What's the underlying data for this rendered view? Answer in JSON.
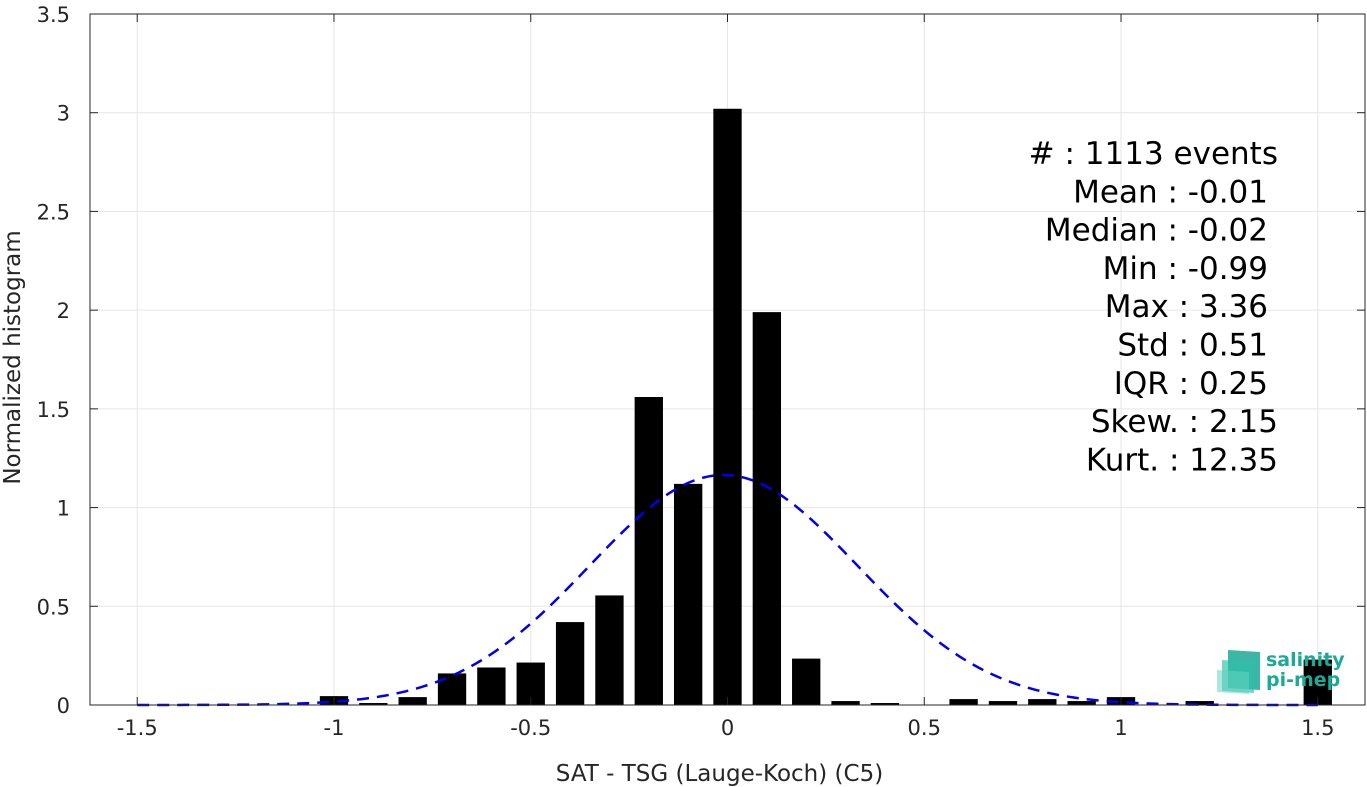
{
  "chart_data": {
    "type": "bar",
    "xlabel": "SAT - TSG (Lauge-Koch) (C5)",
    "ylabel": "Normalized histogram",
    "xlim": [
      -1.62,
      1.62
    ],
    "ylim": [
      0,
      3.5
    ],
    "xticks": [
      -1.5,
      -1,
      -0.5,
      0,
      0.5,
      1,
      1.5
    ],
    "xtick_labels": [
      "-1.5",
      "-1",
      "-0.5",
      "0",
      "0.5",
      "1",
      "1.5"
    ],
    "yticks": [
      0,
      0.5,
      1,
      1.5,
      2,
      2.5,
      3,
      3.5
    ],
    "ytick_labels": [
      "0",
      "0.5",
      "1",
      "1.5",
      "2",
      "2.5",
      "3",
      "3.5"
    ],
    "grid": true,
    "bin_width": 0.1,
    "bars": {
      "x": [
        -1.0,
        -0.9,
        -0.8,
        -0.7,
        -0.6,
        -0.5,
        -0.4,
        -0.3,
        -0.2,
        -0.1,
        0.0,
        0.1,
        0.2,
        0.3,
        0.4,
        0.5,
        0.6,
        0.7,
        0.8,
        0.9,
        1.0,
        1.1,
        1.2,
        1.3,
        1.4,
        1.5
      ],
      "values": [
        0.045,
        0.01,
        0.04,
        0.16,
        0.19,
        0.215,
        0.42,
        0.555,
        1.56,
        1.12,
        3.02,
        1.99,
        0.235,
        0.02,
        0.01,
        0.0,
        0.03,
        0.02,
        0.03,
        0.02,
        0.04,
        0.0,
        0.02,
        0.0,
        0.0,
        0.23
      ],
      "color": "#000000"
    },
    "fit": {
      "type": "gaussian",
      "mean": -0.01,
      "std": 0.34,
      "peak": 1.165,
      "style": "dashed",
      "color": "#0000ee"
    },
    "stats": [
      {
        "label": "#  : 1113 events"
      },
      {
        "label": "Mean : -0.01"
      },
      {
        "label": "Median : -0.02"
      },
      {
        "label": "Min : -0.99"
      },
      {
        "label": "Max : 3.36"
      },
      {
        "label": "Std : 0.51"
      },
      {
        "label": "IQR : 0.25"
      },
      {
        "label": "Skew. : 2.15"
      },
      {
        "label": "Kurt. : 12.35"
      }
    ]
  },
  "logo": {
    "line1": "salinity",
    "line2": "pi-mep",
    "color": "#1aaa96"
  }
}
